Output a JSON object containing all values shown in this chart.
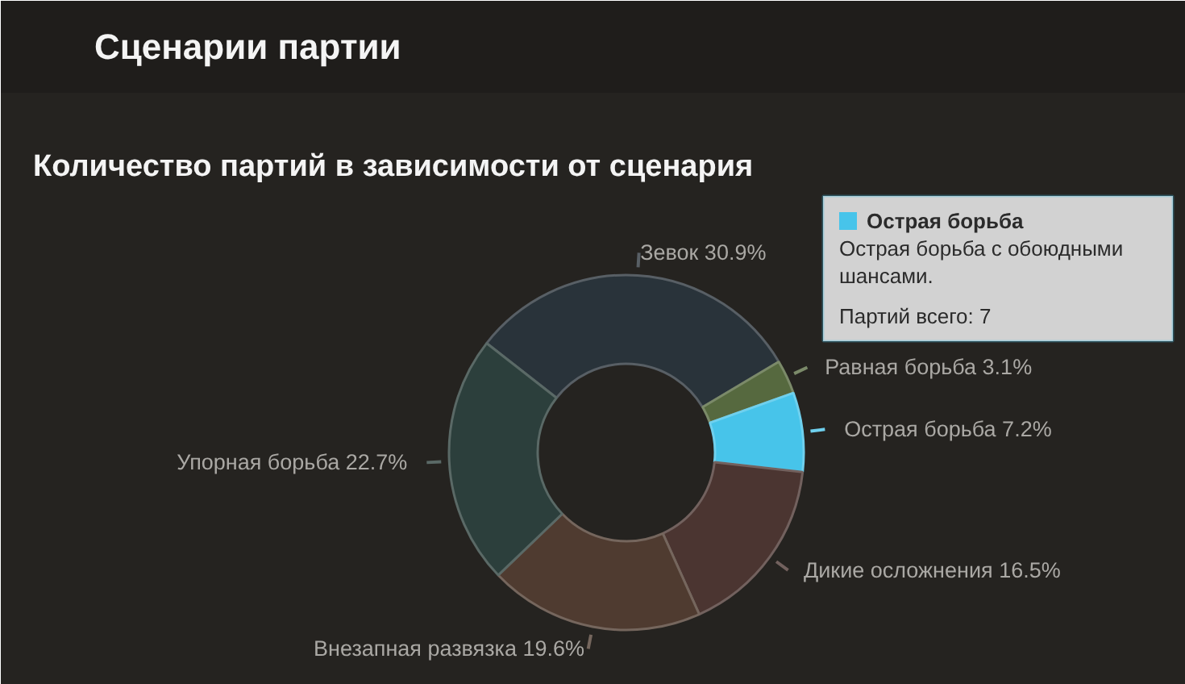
{
  "chart_data": {
    "type": "donut",
    "title": "Сценарии партии",
    "subtitle": "Количество партий в зависимости от сценария",
    "categories": [
      "Зевок",
      "Равная борьба",
      "Острая борьба",
      "Дикие осложнения",
      "Внезапная развязка",
      "Упорная борьба"
    ],
    "values": [
      30.9,
      3.1,
      7.2,
      16.5,
      19.6,
      22.7
    ],
    "colors": [
      "#29333a",
      "#56693f",
      "#47c4ea",
      "#4b3531",
      "#4f3b30",
      "#2c3f3c"
    ],
    "value_labels": [
      "30.9%",
      "3.1%",
      "7.2%",
      "16.5%",
      "19.6%",
      "22.7%"
    ],
    "annotations": [
      "Острая борьба",
      "Острая борьба с обоюдными шансами.",
      "Партий всего: 7"
    ]
  }
}
